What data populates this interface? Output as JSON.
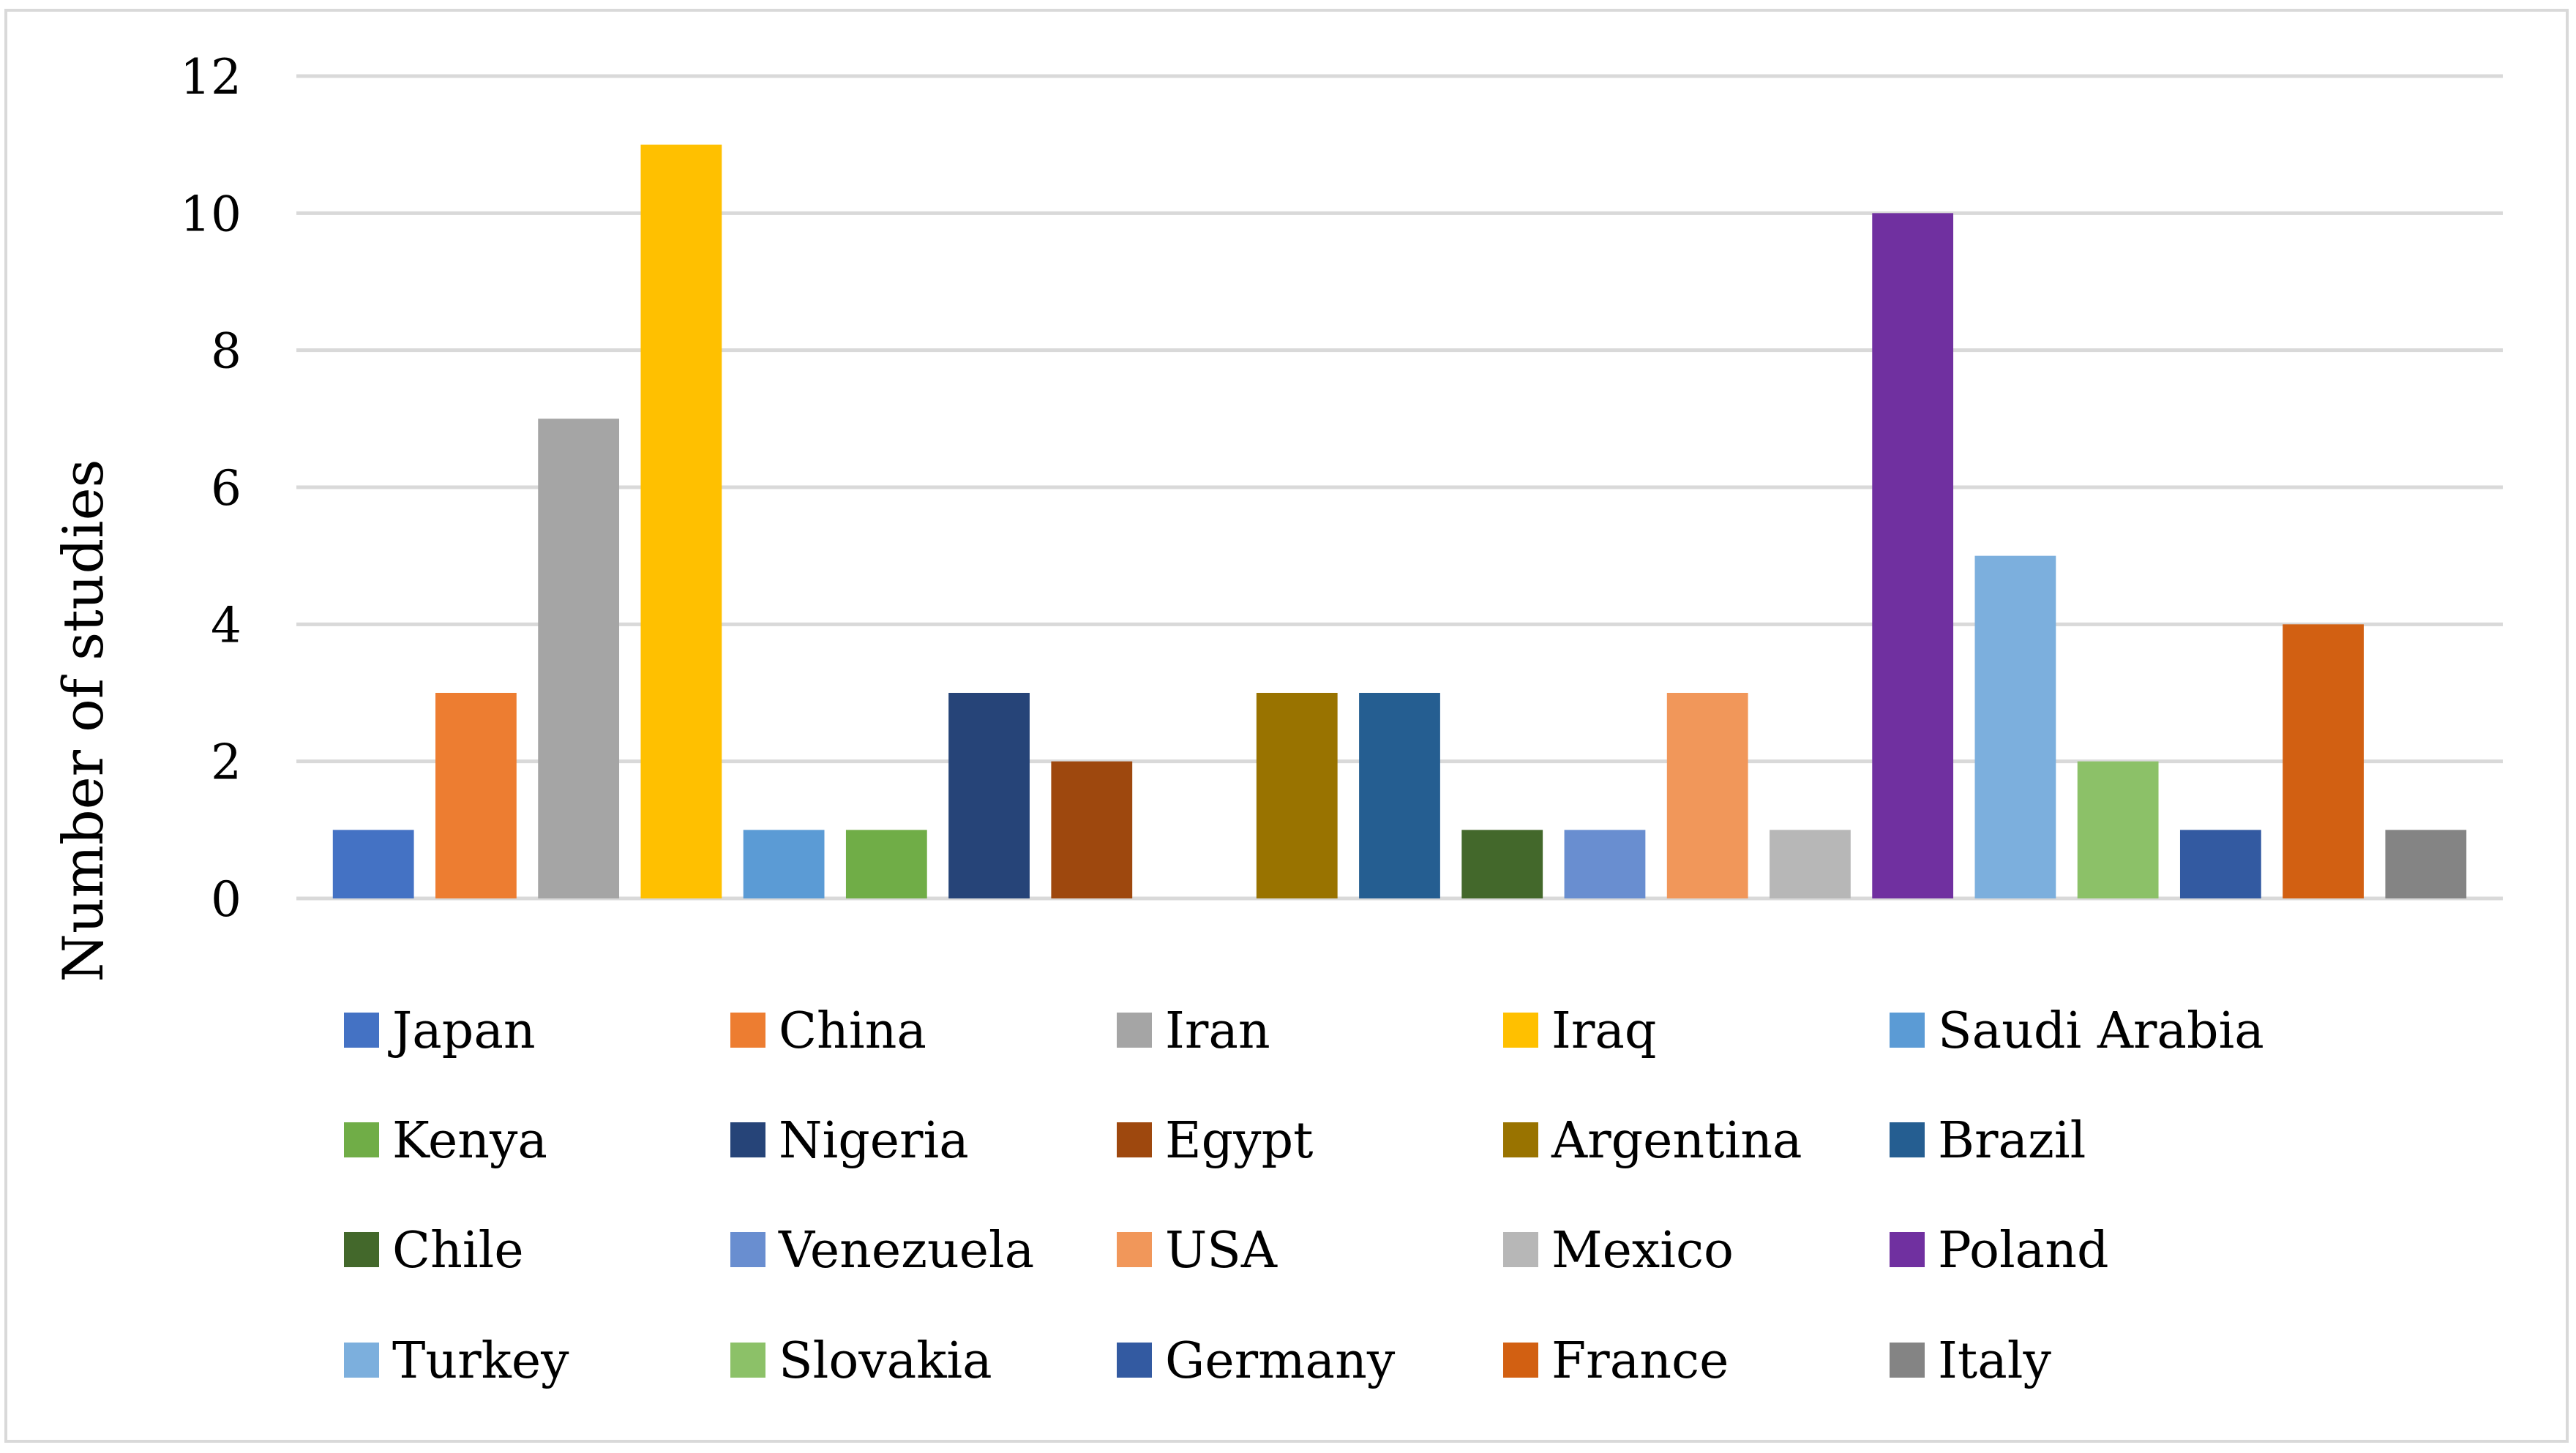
{
  "chart_data": {
    "type": "bar",
    "title": "",
    "xlabel": "",
    "ylabel": "Number of studies",
    "ylim": [
      0,
      12
    ],
    "yticks": [
      0,
      2,
      4,
      6,
      8,
      10,
      12
    ],
    "grid": true,
    "legend_position": "bottom",
    "series": [
      {
        "name": "Japan",
        "value": 1,
        "color": "#4472C4"
      },
      {
        "name": "China",
        "value": 3,
        "color": "#ED7D31"
      },
      {
        "name": "Iran",
        "value": 7,
        "color": "#A5A5A5"
      },
      {
        "name": "Iraq",
        "value": 11,
        "color": "#FFC000"
      },
      {
        "name": "Saudi Arabia",
        "value": 1,
        "color": "#5B9BD5"
      },
      {
        "name": "Kenya",
        "value": 1,
        "color": "#70AD47"
      },
      {
        "name": "Nigeria",
        "value": 3,
        "color": "#264478"
      },
      {
        "name": "Egypt",
        "value": 2,
        "color": "#9E480E"
      },
      {
        "name": "Argentina",
        "value": 3,
        "color": "#997300"
      },
      {
        "name": "Brazil",
        "value": 3,
        "color": "#255E91"
      },
      {
        "name": "Chile",
        "value": 1,
        "color": "#43682B"
      },
      {
        "name": "Venezuela",
        "value": 1,
        "color": "#698ED0"
      },
      {
        "name": "USA",
        "value": 3,
        "color": "#F1975A"
      },
      {
        "name": "Mexico",
        "value": 1,
        "color": "#B7B7B7"
      },
      {
        "name": "Poland",
        "value": 10,
        "color": "#7030A0"
      },
      {
        "name": "Turkey",
        "value": 5,
        "color": "#7CAFDD"
      },
      {
        "name": "Slovakia",
        "value": 2,
        "color": "#8CC168"
      },
      {
        "name": "Germany",
        "value": 1,
        "color": "#335AA1"
      },
      {
        "name": "France",
        "value": 4,
        "color": "#D26012"
      },
      {
        "name": "Italy",
        "value": 1,
        "color": "#848484"
      }
    ]
  }
}
